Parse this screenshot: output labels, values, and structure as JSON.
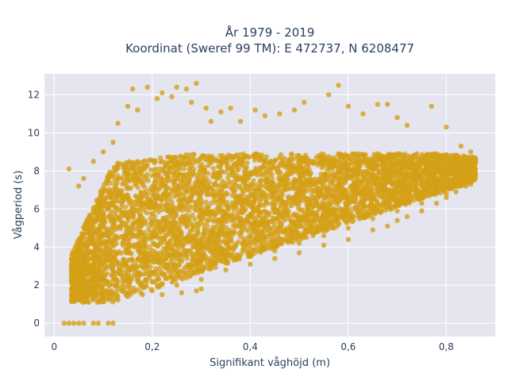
{
  "chart_data": {
    "type": "scatter",
    "title_line1": "År 1979 - 2019",
    "title_line2": "Koordinat (Sweref 99 TM): E 472737, N 6208477",
    "xlabel": "Signifikant våghöjd (m)",
    "ylabel": "Vågperiod (s)",
    "xlim": [
      -0.02,
      0.9
    ],
    "ylim": [
      -0.7,
      13.1
    ],
    "x_ticks": [
      0,
      0.2,
      0.4,
      0.6,
      0.8
    ],
    "x_tick_labels": [
      "0",
      "0,2",
      "0,4",
      "0,6",
      "0,8"
    ],
    "y_ticks": [
      0,
      2,
      4,
      6,
      8,
      10,
      12
    ],
    "y_tick_labels": [
      "0",
      "2",
      "4",
      "6",
      "8",
      "10",
      "12"
    ],
    "grid": true,
    "marker_color": "#D4A017",
    "background_color": "#E5E5F0",
    "series": [
      {
        "points": [
          [
            0.02,
            0
          ],
          [
            0.03,
            0
          ],
          [
            0.04,
            0
          ],
          [
            0.05,
            0
          ],
          [
            0.06,
            0
          ],
          [
            0.08,
            0
          ],
          [
            0.09,
            0
          ],
          [
            0.11,
            0
          ],
          [
            0.12,
            0
          ],
          [
            0.03,
            8.1
          ],
          [
            0.05,
            7.2
          ],
          [
            0.06,
            7.6
          ],
          [
            0.08,
            8.5
          ],
          [
            0.1,
            9.0
          ],
          [
            0.11,
            7.7
          ],
          [
            0.12,
            9.5
          ],
          [
            0.13,
            10.5
          ],
          [
            0.15,
            11.4
          ],
          [
            0.16,
            12.3
          ],
          [
            0.17,
            11.2
          ],
          [
            0.19,
            12.4
          ],
          [
            0.21,
            11.8
          ],
          [
            0.22,
            12.1
          ],
          [
            0.24,
            11.9
          ],
          [
            0.25,
            12.4
          ],
          [
            0.27,
            12.3
          ],
          [
            0.28,
            11.6
          ],
          [
            0.29,
            12.6
          ],
          [
            0.31,
            11.3
          ],
          [
            0.32,
            10.6
          ],
          [
            0.34,
            11.1
          ],
          [
            0.36,
            11.3
          ],
          [
            0.38,
            10.6
          ],
          [
            0.41,
            11.2
          ],
          [
            0.43,
            10.9
          ],
          [
            0.46,
            11.0
          ],
          [
            0.49,
            11.2
          ],
          [
            0.51,
            11.6
          ],
          [
            0.56,
            12.0
          ],
          [
            0.58,
            12.5
          ],
          [
            0.6,
            11.4
          ],
          [
            0.63,
            11.0
          ],
          [
            0.66,
            11.5
          ],
          [
            0.68,
            11.5
          ],
          [
            0.7,
            10.8
          ],
          [
            0.72,
            10.4
          ],
          [
            0.77,
            11.4
          ],
          [
            0.8,
            10.3
          ],
          [
            0.83,
            9.3
          ],
          [
            0.85,
            9.0
          ],
          [
            0.86,
            8.5
          ],
          [
            0.86,
            7.8
          ],
          [
            0.84,
            7.2
          ],
          [
            0.82,
            6.9
          ],
          [
            0.8,
            6.6
          ],
          [
            0.78,
            6.3
          ],
          [
            0.75,
            5.9
          ],
          [
            0.72,
            5.6
          ],
          [
            0.7,
            5.4
          ],
          [
            0.68,
            5.1
          ],
          [
            0.65,
            4.9
          ],
          [
            0.6,
            4.4
          ],
          [
            0.55,
            4.1
          ],
          [
            0.5,
            3.7
          ],
          [
            0.45,
            3.4
          ],
          [
            0.4,
            3.1
          ],
          [
            0.35,
            2.8
          ],
          [
            0.3,
            2.3
          ],
          [
            0.25,
            2.0
          ],
          [
            0.2,
            1.7
          ],
          [
            0.15,
            1.4
          ],
          [
            0.1,
            1.2
          ],
          [
            0.07,
            1.1
          ],
          [
            0.05,
            1.3
          ],
          [
            0.04,
            1.5
          ],
          [
            0.18,
            1.5
          ],
          [
            0.22,
            1.5
          ],
          [
            0.26,
            1.6
          ],
          [
            0.29,
            1.7
          ],
          [
            0.3,
            1.8
          ],
          [
            0.2,
            2.2
          ],
          [
            0.35,
            3.2
          ],
          [
            0.4,
            3.5
          ],
          [
            0.45,
            3.8
          ],
          [
            0.5,
            4.2
          ],
          [
            0.55,
            4.6
          ],
          [
            0.6,
            5.0
          ],
          [
            0.65,
            5.5
          ],
          [
            0.7,
            5.9
          ],
          [
            0.75,
            6.3
          ],
          [
            0.8,
            6.8
          ],
          [
            0.85,
            7.3
          ],
          [
            0.12,
            3.0
          ],
          [
            0.14,
            4.2
          ],
          [
            0.16,
            5.1
          ],
          [
            0.18,
            6.2
          ],
          [
            0.2,
            7.0
          ],
          [
            0.23,
            7.5
          ],
          [
            0.26,
            7.8
          ],
          [
            0.3,
            8.1
          ],
          [
            0.34,
            8.3
          ],
          [
            0.38,
            8.4
          ],
          [
            0.42,
            8.6
          ],
          [
            0.46,
            8.7
          ],
          [
            0.5,
            8.8
          ],
          [
            0.54,
            8.8
          ],
          [
            0.58,
            8.9
          ],
          [
            0.62,
            8.9
          ],
          [
            0.66,
            8.9
          ],
          [
            0.7,
            8.9
          ],
          [
            0.74,
            8.9
          ],
          [
            0.78,
            8.8
          ],
          [
            0.82,
            8.8
          ],
          [
            0.06,
            2.0
          ],
          [
            0.07,
            2.8
          ],
          [
            0.08,
            3.6
          ],
          [
            0.09,
            4.5
          ],
          [
            0.1,
            5.4
          ],
          [
            0.11,
            6.3
          ]
        ]
      }
    ]
  }
}
